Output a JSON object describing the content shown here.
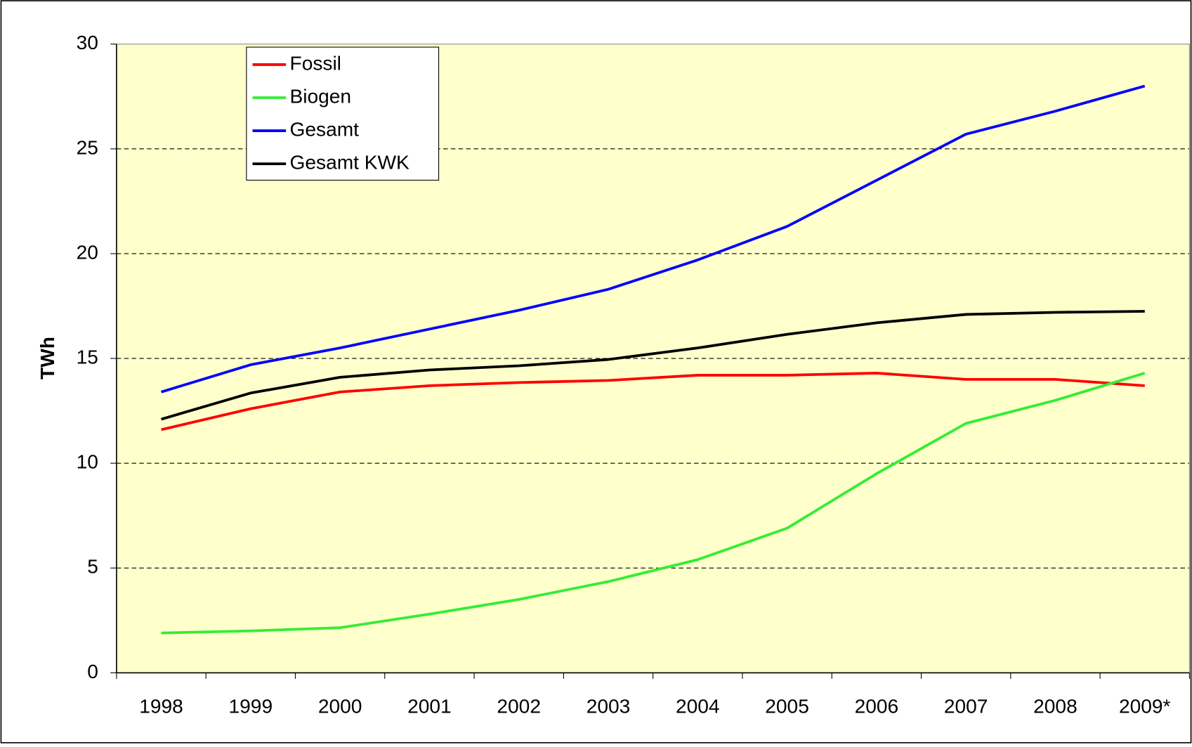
{
  "chart_data": {
    "type": "line",
    "ylabel": "TWh",
    "categories": [
      "1998",
      "1999",
      "2000",
      "2001",
      "2002",
      "2003",
      "2004",
      "2005",
      "2006",
      "2007",
      "2008",
      "2009*"
    ],
    "series": [
      {
        "name": "Fossil",
        "color": "#ff0000",
        "values": [
          11.6,
          12.6,
          13.4,
          13.7,
          13.85,
          13.95,
          14.2,
          14.2,
          14.3,
          14.0,
          14.0,
          13.7
        ]
      },
      {
        "name": "Biogen",
        "color": "#33ee33",
        "values": [
          1.9,
          2.0,
          2.15,
          2.8,
          3.5,
          4.35,
          5.4,
          6.9,
          9.5,
          11.9,
          13.0,
          14.3
        ]
      },
      {
        "name": "Gesamt",
        "color": "#0000ff",
        "values": [
          13.4,
          14.7,
          15.5,
          16.4,
          17.3,
          18.3,
          19.7,
          21.3,
          23.5,
          25.7,
          26.8,
          28.0
        ]
      },
      {
        "name": "Gesamt KWK",
        "color": "#000000",
        "values": [
          12.1,
          13.35,
          14.1,
          14.45,
          14.65,
          14.95,
          15.5,
          16.15,
          16.7,
          17.1,
          17.2,
          17.25
        ]
      }
    ],
    "ylim": [
      0,
      30
    ],
    "yticks": [
      0,
      5,
      10,
      15,
      20,
      25,
      30
    ],
    "grid": true,
    "legend": "upper left",
    "background": "#ffffcc"
  }
}
